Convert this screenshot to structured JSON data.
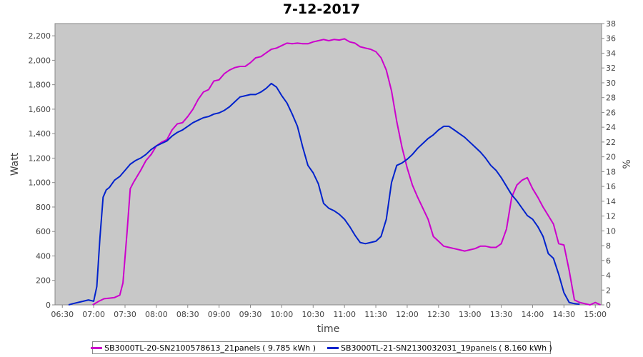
{
  "chart_data": {
    "type": "line",
    "title": "7-12-2017",
    "xlabel": "time",
    "ylabel": "Watt",
    "y2label": "%",
    "x_ticks": [
      "06:30",
      "07:00",
      "07:30",
      "08:00",
      "08:30",
      "09:00",
      "09:30",
      "10:00",
      "10:30",
      "11:00",
      "11:30",
      "12:00",
      "12:30",
      "13:00",
      "13:30",
      "14:00",
      "14:30",
      "15:00"
    ],
    "y_ticks": [
      "0",
      "200",
      "400",
      "600",
      "800",
      "1,000",
      "1,200",
      "1,400",
      "1,600",
      "1,800",
      "2,000",
      "2,200"
    ],
    "y2_ticks": [
      "0",
      "2",
      "4",
      "6",
      "8",
      "10",
      "12",
      "14",
      "16",
      "18",
      "20",
      "22",
      "24",
      "26",
      "28",
      "30",
      "32",
      "34",
      "36",
      "38"
    ],
    "xlim": [
      "06:23",
      "15:06"
    ],
    "ylim": [
      0,
      2300
    ],
    "y2lim": [
      0,
      38
    ],
    "grid": false,
    "legend_position": "bottom",
    "series": [
      {
        "name": "SB3000TL-20-SN2100578613_21panels",
        "legend_value": "( 9.785 kWh )",
        "color": "#cc00cc",
        "points": [
          [
            "06:59",
            0
          ],
          [
            "07:05",
            30
          ],
          [
            "07:10",
            50
          ],
          [
            "07:15",
            55
          ],
          [
            "07:20",
            60
          ],
          [
            "07:25",
            80
          ],
          [
            "07:28",
            180
          ],
          [
            "07:32",
            600
          ],
          [
            "07:35",
            950
          ],
          [
            "07:38",
            1000
          ],
          [
            "07:45",
            1100
          ],
          [
            "07:50",
            1180
          ],
          [
            "07:55",
            1230
          ],
          [
            "08:00",
            1300
          ],
          [
            "08:05",
            1330
          ],
          [
            "08:10",
            1350
          ],
          [
            "08:15",
            1430
          ],
          [
            "08:20",
            1480
          ],
          [
            "08:25",
            1490
          ],
          [
            "08:30",
            1540
          ],
          [
            "08:35",
            1600
          ],
          [
            "08:40",
            1680
          ],
          [
            "08:45",
            1740
          ],
          [
            "08:50",
            1760
          ],
          [
            "08:55",
            1830
          ],
          [
            "09:00",
            1840
          ],
          [
            "09:05",
            1890
          ],
          [
            "09:10",
            1920
          ],
          [
            "09:15",
            1940
          ],
          [
            "09:20",
            1950
          ],
          [
            "09:25",
            1950
          ],
          [
            "09:30",
            1980
          ],
          [
            "09:35",
            2020
          ],
          [
            "09:40",
            2030
          ],
          [
            "09:45",
            2060
          ],
          [
            "09:50",
            2090
          ],
          [
            "09:55",
            2100
          ],
          [
            "10:00",
            2120
          ],
          [
            "10:05",
            2140
          ],
          [
            "10:10",
            2135
          ],
          [
            "10:15",
            2140
          ],
          [
            "10:20",
            2135
          ],
          [
            "10:25",
            2135
          ],
          [
            "10:30",
            2150
          ],
          [
            "10:35",
            2160
          ],
          [
            "10:40",
            2170
          ],
          [
            "10:45",
            2160
          ],
          [
            "10:50",
            2170
          ],
          [
            "10:55",
            2165
          ],
          [
            "11:00",
            2175
          ],
          [
            "11:05",
            2150
          ],
          [
            "11:10",
            2140
          ],
          [
            "11:15",
            2110
          ],
          [
            "11:20",
            2100
          ],
          [
            "11:25",
            2090
          ],
          [
            "11:30",
            2070
          ],
          [
            "11:35",
            2020
          ],
          [
            "11:40",
            1920
          ],
          [
            "11:45",
            1750
          ],
          [
            "11:50",
            1500
          ],
          [
            "11:55",
            1290
          ],
          [
            "12:00",
            1120
          ],
          [
            "12:05",
            980
          ],
          [
            "12:10",
            880
          ],
          [
            "12:15",
            790
          ],
          [
            "12:20",
            700
          ],
          [
            "12:25",
            560
          ],
          [
            "12:30",
            520
          ],
          [
            "12:35",
            480
          ],
          [
            "12:40",
            470
          ],
          [
            "12:45",
            460
          ],
          [
            "12:50",
            450
          ],
          [
            "12:55",
            440
          ],
          [
            "13:00",
            450
          ],
          [
            "13:05",
            460
          ],
          [
            "13:10",
            480
          ],
          [
            "13:15",
            480
          ],
          [
            "13:20",
            470
          ],
          [
            "13:25",
            470
          ],
          [
            "13:30",
            500
          ],
          [
            "13:35",
            620
          ],
          [
            "13:40",
            880
          ],
          [
            "13:45",
            980
          ],
          [
            "13:50",
            1020
          ],
          [
            "13:55",
            1040
          ],
          [
            "14:00",
            950
          ],
          [
            "14:05",
            880
          ],
          [
            "14:10",
            800
          ],
          [
            "14:15",
            730
          ],
          [
            "14:20",
            660
          ],
          [
            "14:25",
            500
          ],
          [
            "14:30",
            490
          ],
          [
            "14:35",
            280
          ],
          [
            "14:40",
            40
          ],
          [
            "14:45",
            20
          ],
          [
            "14:50",
            10
          ],
          [
            "14:55",
            0
          ],
          [
            "15:00",
            20
          ],
          [
            "15:05",
            0
          ]
        ]
      },
      {
        "name": "SB3000TL-21-SN2130032031_19panels",
        "legend_value": "( 8.160 kWh )",
        "color": "#0022cc",
        "points": [
          [
            "06:36",
            0
          ],
          [
            "06:40",
            10
          ],
          [
            "06:45",
            20
          ],
          [
            "06:50",
            30
          ],
          [
            "06:55",
            40
          ],
          [
            "07:00",
            30
          ],
          [
            "07:03",
            150
          ],
          [
            "07:06",
            550
          ],
          [
            "07:09",
            880
          ],
          [
            "07:12",
            940
          ],
          [
            "07:15",
            960
          ],
          [
            "07:20",
            1020
          ],
          [
            "07:25",
            1050
          ],
          [
            "07:30",
            1100
          ],
          [
            "07:35",
            1150
          ],
          [
            "07:40",
            1180
          ],
          [
            "07:45",
            1200
          ],
          [
            "07:50",
            1230
          ],
          [
            "07:55",
            1270
          ],
          [
            "08:00",
            1300
          ],
          [
            "08:05",
            1320
          ],
          [
            "08:10",
            1340
          ],
          [
            "08:15",
            1380
          ],
          [
            "08:20",
            1410
          ],
          [
            "08:25",
            1430
          ],
          [
            "08:30",
            1460
          ],
          [
            "08:35",
            1490
          ],
          [
            "08:40",
            1510
          ],
          [
            "08:45",
            1530
          ],
          [
            "08:50",
            1540
          ],
          [
            "08:55",
            1560
          ],
          [
            "09:00",
            1570
          ],
          [
            "09:05",
            1590
          ],
          [
            "09:10",
            1620
          ],
          [
            "09:15",
            1660
          ],
          [
            "09:20",
            1700
          ],
          [
            "09:25",
            1710
          ],
          [
            "09:30",
            1720
          ],
          [
            "09:35",
            1720
          ],
          [
            "09:40",
            1740
          ],
          [
            "09:45",
            1770
          ],
          [
            "09:50",
            1810
          ],
          [
            "09:55",
            1780
          ],
          [
            "10:00",
            1710
          ],
          [
            "10:05",
            1650
          ],
          [
            "10:10",
            1560
          ],
          [
            "10:15",
            1460
          ],
          [
            "10:20",
            1290
          ],
          [
            "10:25",
            1140
          ],
          [
            "10:30",
            1080
          ],
          [
            "10:35",
            990
          ],
          [
            "10:40",
            830
          ],
          [
            "10:45",
            790
          ],
          [
            "10:50",
            770
          ],
          [
            "10:55",
            740
          ],
          [
            "11:00",
            700
          ],
          [
            "11:05",
            640
          ],
          [
            "11:10",
            570
          ],
          [
            "11:15",
            510
          ],
          [
            "11:20",
            500
          ],
          [
            "11:25",
            510
          ],
          [
            "11:30",
            520
          ],
          [
            "11:35",
            560
          ],
          [
            "11:40",
            700
          ],
          [
            "11:45",
            1000
          ],
          [
            "11:50",
            1140
          ],
          [
            "11:55",
            1160
          ],
          [
            "12:00",
            1190
          ],
          [
            "12:05",
            1230
          ],
          [
            "12:10",
            1280
          ],
          [
            "12:15",
            1320
          ],
          [
            "12:20",
            1360
          ],
          [
            "12:25",
            1390
          ],
          [
            "12:30",
            1430
          ],
          [
            "12:35",
            1460
          ],
          [
            "12:40",
            1460
          ],
          [
            "12:45",
            1430
          ],
          [
            "12:50",
            1400
          ],
          [
            "12:55",
            1370
          ],
          [
            "13:00",
            1330
          ],
          [
            "13:05",
            1290
          ],
          [
            "13:10",
            1250
          ],
          [
            "13:15",
            1200
          ],
          [
            "13:20",
            1140
          ],
          [
            "13:25",
            1100
          ],
          [
            "13:30",
            1040
          ],
          [
            "13:35",
            970
          ],
          [
            "13:40",
            900
          ],
          [
            "13:45",
            850
          ],
          [
            "13:50",
            790
          ],
          [
            "13:55",
            730
          ],
          [
            "14:00",
            700
          ],
          [
            "14:05",
            640
          ],
          [
            "14:10",
            560
          ],
          [
            "14:15",
            420
          ],
          [
            "14:20",
            380
          ],
          [
            "14:25",
            250
          ],
          [
            "14:30",
            100
          ],
          [
            "14:35",
            20
          ],
          [
            "14:40",
            10
          ],
          [
            "14:45",
            5
          ]
        ]
      }
    ]
  }
}
